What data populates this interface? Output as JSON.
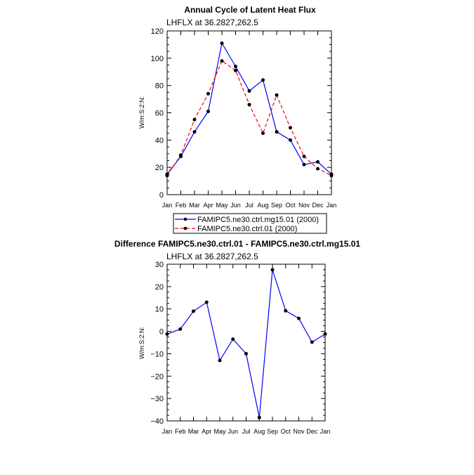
{
  "colors": {
    "series_a": "#0000ff",
    "series_b": "#ff0000",
    "marker": "#000000",
    "axis": "#000000",
    "background": "#ffffff"
  },
  "chart_data": [
    {
      "type": "line",
      "title": "Annual Cycle of Latent Heat Flux",
      "subtitle": "LHFLX at 36.2827,262.5",
      "ylabel": "W/m:S:2:N:",
      "xlabel": "",
      "categories": [
        "Jan",
        "Feb",
        "Mar",
        "Apr",
        "May",
        "Jun",
        "Jul",
        "Aug",
        "Sep",
        "Oct",
        "Nov",
        "Dec",
        "Jan"
      ],
      "ylim": [
        0,
        120
      ],
      "yticks": [
        0,
        20,
        40,
        60,
        80,
        100,
        120
      ],
      "grid": false,
      "legend_position": "bottom-center",
      "series": [
        {
          "name": "FAMIPC5.ne30.ctrl.mg15.01 (2000)",
          "color": "#0000ff",
          "dash": "solid",
          "values": [
            15,
            28,
            46,
            61,
            111,
            94,
            76,
            84,
            46,
            40,
            22,
            24,
            15
          ]
        },
        {
          "name": "FAMIPC5.ne30.ctrl.01 (2000)",
          "color": "#ff0000",
          "dash": "dashed",
          "values": [
            14,
            29,
            55,
            74,
            98,
            91,
            66,
            45,
            73,
            49,
            28,
            19,
            14
          ]
        }
      ]
    },
    {
      "type": "line",
      "title": "Difference FAMIPC5.ne30.ctrl.01 - FAMIPC5.ne30.ctrl.mg15.01",
      "subtitle": "LHFLX at 36.2827,262.5",
      "ylabel": "W/m:S:2:N:",
      "xlabel": "",
      "categories": [
        "Jan",
        "Feb",
        "Mar",
        "Apr",
        "May",
        "Jun",
        "Jul",
        "Aug",
        "Sep",
        "Oct",
        "Nov",
        "Dec",
        "Jan"
      ],
      "ylim": [
        -40,
        30
      ],
      "yticks": [
        -40,
        -30,
        -20,
        -10,
        0,
        10,
        20,
        30
      ],
      "grid": false,
      "series": [
        {
          "color": "#0000ff",
          "dash": "solid",
          "values": [
            -1.2,
            1,
            9,
            13,
            -13,
            -3.5,
            -10,
            -38.5,
            27.5,
            9.2,
            5.8,
            -4.8,
            -1.2
          ]
        }
      ]
    }
  ]
}
